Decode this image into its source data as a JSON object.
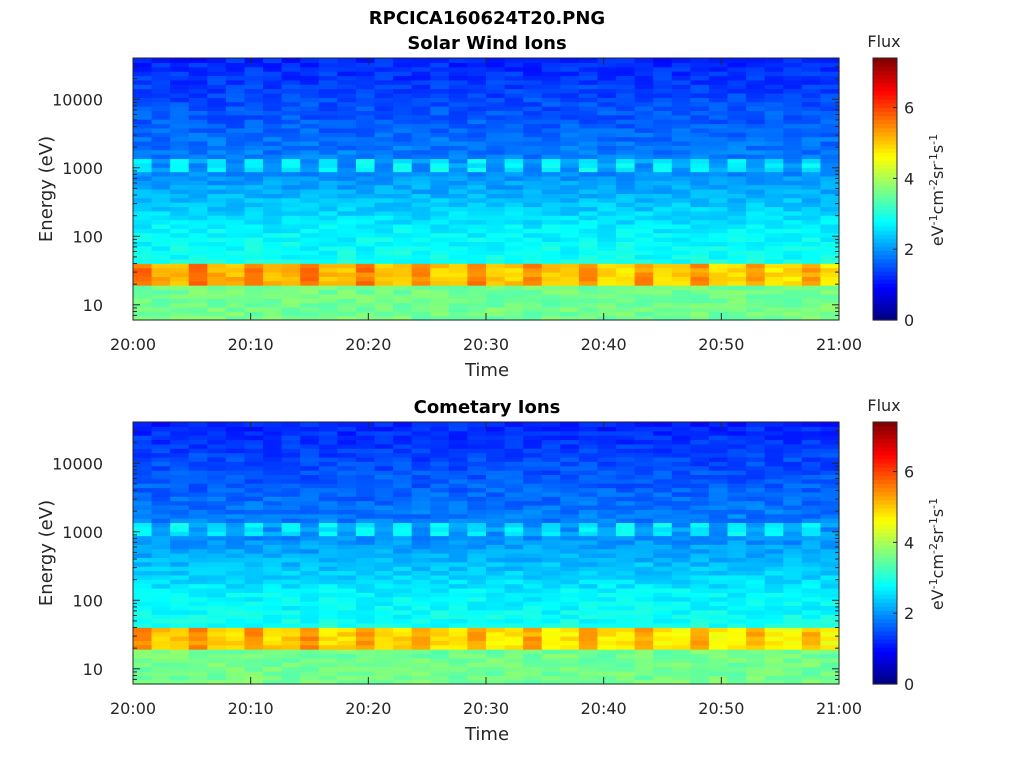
{
  "figure_title": "RPCICA160624T20.PNG",
  "chart_data": [
    {
      "type": "heatmap",
      "title": "Solar Wind Ions",
      "xlabel": "Time",
      "ylabel": "Energy (eV)",
      "x_ticks": [
        "20:00",
        "20:10",
        "20:20",
        "20:30",
        "20:40",
        "20:50",
        "21:00"
      ],
      "x_range": [
        "20:00",
        "21:00"
      ],
      "y_scale": "log",
      "y_ticks": [
        10,
        100,
        1000,
        10000
      ],
      "y_tick_labels": [
        "10",
        "100",
        "1000",
        "10000"
      ],
      "y_range": [
        6,
        40000
      ],
      "colorbar": {
        "title": "Flux",
        "label": "eV-1cm-2sr-1s-1",
        "ticks": [
          "0",
          "2",
          "4",
          "6"
        ],
        "range": [
          0,
          7.4
        ],
        "colormap": "jet"
      },
      "features": [
        {
          "description": "band",
          "energy_ev": [
            20,
            38
          ],
          "flux": 5.2
        },
        {
          "description": "band",
          "energy_ev": [
            900,
            1350
          ],
          "flux": 2.7,
          "pattern": "periodic"
        }
      ]
    },
    {
      "type": "heatmap",
      "title": "Cometary Ions",
      "xlabel": "Time",
      "ylabel": "Energy (eV)",
      "x_ticks": [
        "20:00",
        "20:10",
        "20:20",
        "20:30",
        "20:40",
        "20:50",
        "21:00"
      ],
      "x_range": [
        "20:00",
        "21:00"
      ],
      "y_scale": "log",
      "y_ticks": [
        10,
        100,
        1000,
        10000
      ],
      "y_tick_labels": [
        "10",
        "100",
        "1000",
        "10000"
      ],
      "y_range": [
        6,
        40000
      ],
      "colorbar": {
        "title": "Flux",
        "label": "eV-1cm-2sr-1s-1",
        "ticks": [
          "0",
          "2",
          "4",
          "6"
        ],
        "range": [
          0,
          7.4
        ],
        "colormap": "jet"
      },
      "features": [
        {
          "description": "band",
          "energy_ev": [
            20,
            38
          ],
          "flux": 5.0
        },
        {
          "description": "band",
          "energy_ev": [
            900,
            1350
          ],
          "flux": 2.7,
          "pattern": "periodic"
        }
      ]
    }
  ]
}
